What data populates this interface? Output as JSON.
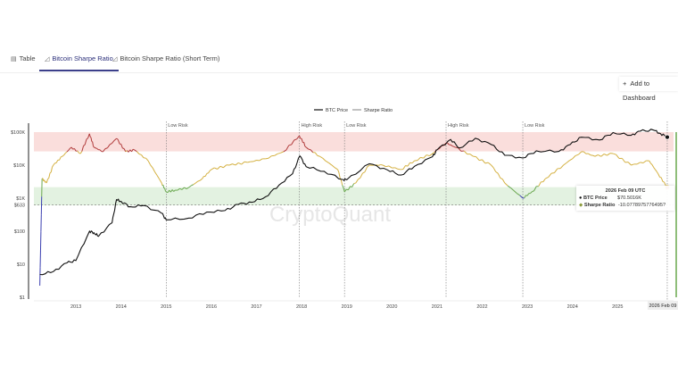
{
  "tabs": [
    {
      "label": "Table",
      "icon": "table-icon",
      "active": false
    },
    {
      "label": "Bitcoin Sharpe Ratio",
      "icon": "chart-icon",
      "active": true
    },
    {
      "label": "Bitcoin Sharpe Ratio (Short Term)",
      "icon": "chart-icon",
      "active": false
    }
  ],
  "add_dashboard": {
    "icon": "plus-icon",
    "label": "Add to Dashboard"
  },
  "watermark": "CryptoQuant",
  "tooltip": {
    "date": "2026 Feb 09 UTC",
    "btc_label": "BTC Price",
    "btc_value": "$70.5016K",
    "sharpe_label": "Sharpe Ratio",
    "sharpe_value": "-10.0778975776495?"
  },
  "chart_data": {
    "type": "line",
    "legend": [
      "BTC Price",
      "Sharpe Ratio"
    ],
    "legend_placement": "top-center",
    "y_axis": {
      "scale": "log",
      "ticks": [
        "$1",
        "$10",
        "$100",
        "$1K",
        "$10K",
        "$100K"
      ],
      "tick_values": [
        1,
        10,
        100,
        1000,
        10000,
        100000
      ],
      "marker_label": "$633",
      "marker_value": 633
    },
    "x_axis": {
      "ticks": [
        "2013",
        "2014",
        "2015",
        "2016",
        "2017",
        "2018",
        "2019",
        "2020",
        "2021",
        "2022",
        "2023",
        "2024",
        "2025"
      ],
      "cursor_label": "2026 Feb 09"
    },
    "sharpe_range": [
      -50,
      10
    ],
    "zones": {
      "high_risk": [
        3,
        10
      ],
      "low_risk": [
        -16.6,
        -10
      ],
      "high_color": "#f9d6d3",
      "low_color": "#dcefd9"
    },
    "annotations": [
      {
        "label": "Low Risk",
        "x": 2015.0
      },
      {
        "label": "High Risk",
        "x": 2017.95
      },
      {
        "label": "Low Risk",
        "x": 2018.95
      },
      {
        "label": "High Risk",
        "x": 2021.2
      },
      {
        "label": "Low Risk",
        "x": 2022.9
      }
    ],
    "colors": {
      "btc": "#111111",
      "red": "#b03a3a",
      "yellow": "#d4b040",
      "green": "#6aa84f",
      "blue": "#3a3fb0"
    },
    "btc_price": [
      [
        2012.2,
        4.9
      ],
      [
        2012.5,
        6
      ],
      [
        2012.8,
        11
      ],
      [
        2013.0,
        13
      ],
      [
        2013.3,
        100
      ],
      [
        2013.4,
        90
      ],
      [
        2013.5,
        70
      ],
      [
        2013.8,
        180
      ],
      [
        2013.9,
        900
      ],
      [
        2014.0,
        800
      ],
      [
        2014.2,
        550
      ],
      [
        2014.5,
        600
      ],
      [
        2014.9,
        350
      ],
      [
        2015.0,
        220
      ],
      [
        2015.5,
        250
      ],
      [
        2015.9,
        380
      ],
      [
        2016.3,
        420
      ],
      [
        2016.6,
        650
      ],
      [
        2016.9,
        750
      ],
      [
        2017.2,
        1100
      ],
      [
        2017.5,
        2500
      ],
      [
        2017.8,
        5500
      ],
      [
        2017.96,
        19000
      ],
      [
        2018.1,
        9000
      ],
      [
        2018.5,
        6500
      ],
      [
        2018.9,
        3700
      ],
      [
        2019.0,
        3600
      ],
      [
        2019.5,
        11000
      ],
      [
        2019.9,
        7200
      ],
      [
        2020.2,
        5000
      ],
      [
        2020.5,
        9200
      ],
      [
        2020.9,
        18000
      ],
      [
        2021.0,
        29000
      ],
      [
        2021.3,
        60000
      ],
      [
        2021.5,
        33000
      ],
      [
        2021.85,
        65000
      ],
      [
        2022.2,
        42000
      ],
      [
        2022.5,
        20000
      ],
      [
        2022.9,
        16500
      ],
      [
        2023.2,
        27000
      ],
      [
        2023.7,
        26000
      ],
      [
        2023.95,
        42000
      ],
      [
        2024.2,
        70000
      ],
      [
        2024.6,
        58000
      ],
      [
        2024.9,
        97000
      ],
      [
        2025.3,
        80000
      ],
      [
        2025.5,
        107000
      ],
      [
        2025.8,
        115000
      ],
      [
        2025.95,
        90000
      ],
      [
        2026.1,
        70502
      ]
    ],
    "sharpe_ratio": [
      [
        2012.2,
        -45.8
      ],
      [
        2012.25,
        -6.9
      ],
      [
        2012.35,
        -8.5
      ],
      [
        2012.5,
        -2.0
      ],
      [
        2012.7,
        1.2
      ],
      [
        2012.9,
        4.5
      ],
      [
        2013.1,
        2.2
      ],
      [
        2013.3,
        9.4
      ],
      [
        2013.4,
        4.5
      ],
      [
        2013.6,
        2.9
      ],
      [
        2013.9,
        7.7
      ],
      [
        2014.1,
        2.9
      ],
      [
        2014.3,
        3.5
      ],
      [
        2014.6,
        -0.4
      ],
      [
        2014.9,
        -8.5
      ],
      [
        2015.0,
        -11.7
      ],
      [
        2015.2,
        -11.1
      ],
      [
        2015.5,
        -10.1
      ],
      [
        2015.8,
        -6.9
      ],
      [
        2016.0,
        -3.6
      ],
      [
        2016.4,
        -2.0
      ],
      [
        2016.8,
        -1.0
      ],
      [
        2017.2,
        0.3
      ],
      [
        2017.6,
        2.9
      ],
      [
        2017.95,
        8.7
      ],
      [
        2018.1,
        4.5
      ],
      [
        2018.4,
        1.2
      ],
      [
        2018.8,
        -3.6
      ],
      [
        2018.95,
        -11.7
      ],
      [
        2019.2,
        -8.5
      ],
      [
        2019.5,
        -2.0
      ],
      [
        2019.8,
        -2.0
      ],
      [
        2020.2,
        -3.6
      ],
      [
        2020.5,
        -0.4
      ],
      [
        2020.9,
        2.2
      ],
      [
        2021.2,
        6.1
      ],
      [
        2021.4,
        4.5
      ],
      [
        2021.8,
        1.2
      ],
      [
        2022.2,
        -2.0
      ],
      [
        2022.5,
        -8.5
      ],
      [
        2022.9,
        -14.0
      ],
      [
        2023.1,
        -11.7
      ],
      [
        2023.4,
        -6.9
      ],
      [
        2023.8,
        -2.0
      ],
      [
        2024.2,
        2.9
      ],
      [
        2024.5,
        1.2
      ],
      [
        2024.9,
        2.2
      ],
      [
        2025.3,
        -2.0
      ],
      [
        2025.7,
        -0.4
      ],
      [
        2025.9,
        -5.2
      ],
      [
        2026.1,
        -10.08
      ]
    ]
  }
}
